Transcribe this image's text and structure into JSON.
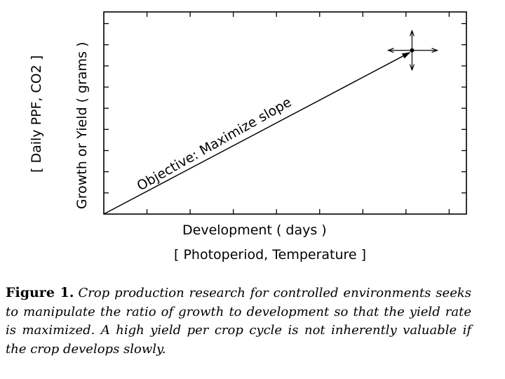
{
  "chart_data": {
    "type": "line",
    "x_axis_label": "Development ( days )",
    "x_axis_sublabel": "[ Photoperiod, Temperature ]",
    "y_axis_label": "Growth or Yield ( grams )",
    "y_axis_sublabel": "[ Daily PPF, CO2 ]",
    "annotation": "Objective: Maximize slope",
    "xlim": [
      0,
      1
    ],
    "ylim": [
      0,
      1
    ],
    "series": [
      {
        "x": [
          0,
          0.85
        ],
        "y": [
          0,
          0.81
        ]
      }
    ],
    "target_point": {
      "x": 0.85,
      "y": 0.81
    },
    "y_tick_count": 9,
    "x_tick_count": 8
  },
  "caption": {
    "label": "Figure 1.",
    "text": "Crop production research for controlled environments seeks to manipulate the ratio of growth to development so that the yield rate is maximized. A high yield per crop cycle is not inherently valuable if the crop develops slowly."
  }
}
